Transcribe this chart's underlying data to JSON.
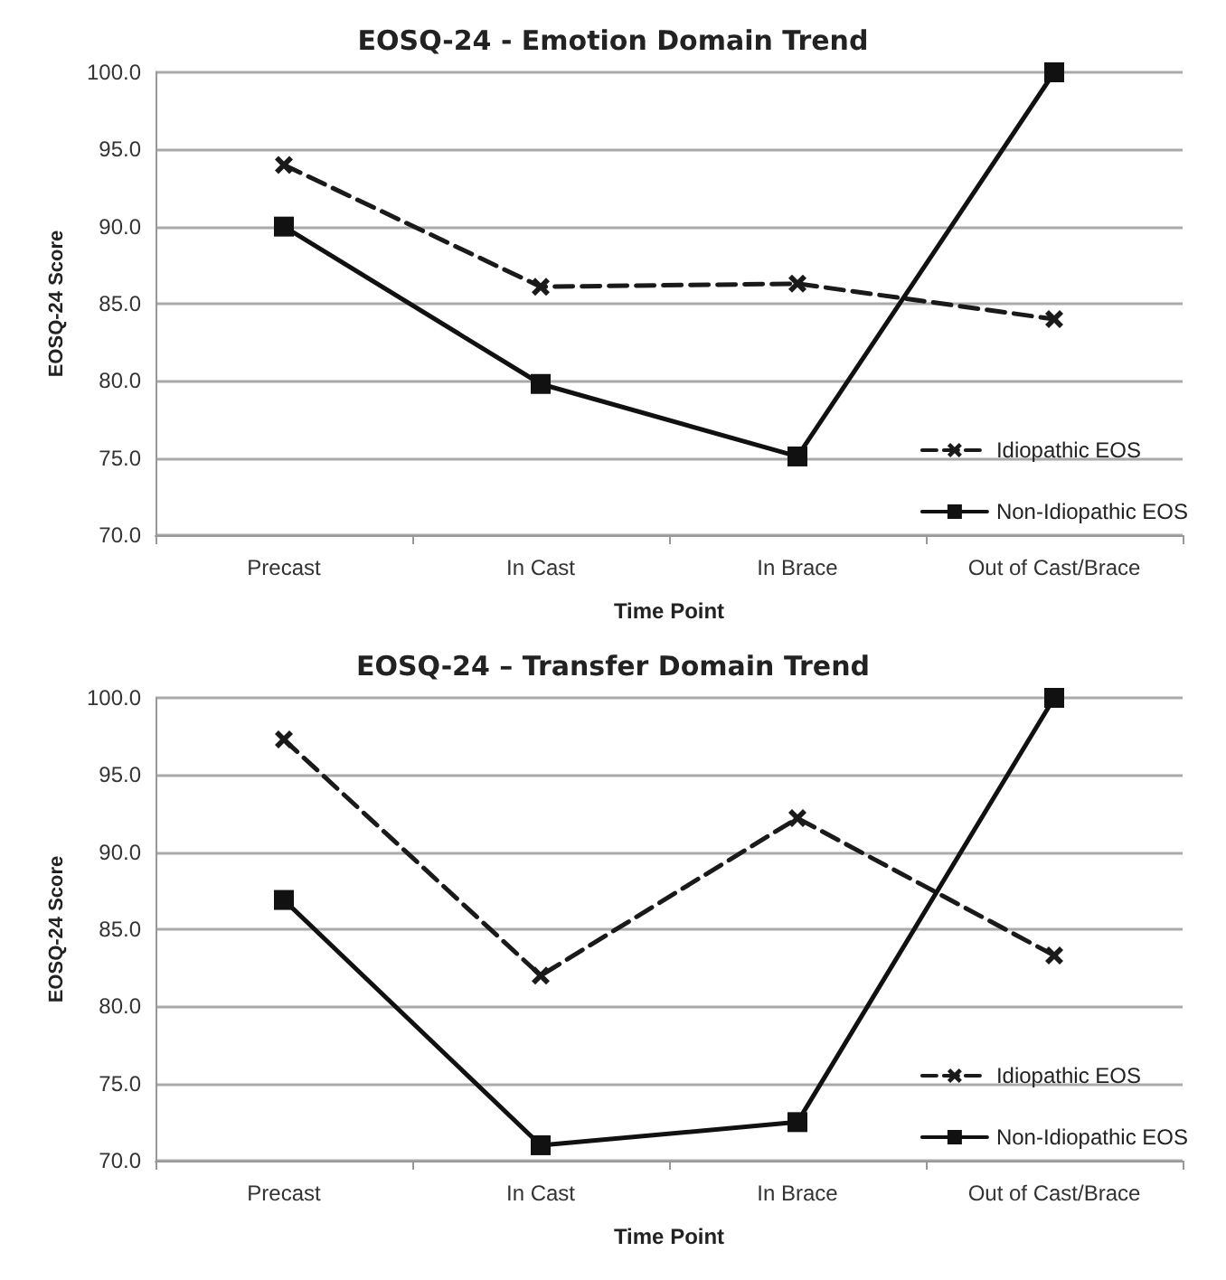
{
  "chart_data": [
    {
      "type": "line",
      "title": "EOSQ-24 - Emotion Domain Trend",
      "xlabel": "Time Point",
      "ylabel": "EOSQ-24 Score",
      "categories": [
        "Precast",
        "In Cast",
        "In Brace",
        "Out of Cast/Brace"
      ],
      "series": [
        {
          "name": "Idiopathic EOS",
          "color": "#1a1a1a",
          "values": [
            94.0,
            86.1,
            86.3,
            84.0
          ],
          "marker": "cross",
          "line_style": "dashed"
        },
        {
          "name": "Non-Idiopathic EOS",
          "color": "#111111",
          "values": [
            90.0,
            79.8,
            75.1,
            100.0
          ],
          "marker": "square",
          "line_style": "solid"
        }
      ],
      "ylim": [
        70,
        100
      ],
      "yticks": [
        {
          "value": 70,
          "label": "70.0"
        },
        {
          "value": 75,
          "label": "75.0"
        },
        {
          "value": 80,
          "label": "80.0"
        },
        {
          "value": 85,
          "label": "85.0"
        },
        {
          "value": 90,
          "label": "90.0"
        },
        {
          "value": 95,
          "label": "95.0"
        },
        {
          "value": 100,
          "label": "100.0"
        }
      ],
      "grid": "y",
      "legend": "bottom right"
    },
    {
      "type": "line",
      "title": "EOSQ-24 – Transfer Domain Trend",
      "xlabel": "Time Point",
      "ylabel": "EOSQ-24 Score",
      "categories": [
        "Precast",
        "In Cast",
        "In Brace",
        "Out of Cast/Brace"
      ],
      "series": [
        {
          "name": "Idiopathic EOS",
          "color": "#1a1a1a",
          "values": [
            97.3,
            82.0,
            92.2,
            83.3
          ],
          "marker": "cross",
          "line_style": "dashed"
        },
        {
          "name": "Non-Idiopathic EOS",
          "color": "#111111",
          "values": [
            86.9,
            71.0,
            72.5,
            100.0
          ],
          "marker": "square",
          "line_style": "solid"
        }
      ],
      "ylim": [
        70,
        100
      ],
      "yticks": [
        {
          "value": 70,
          "label": "70.0"
        },
        {
          "value": 75,
          "label": "75.0"
        },
        {
          "value": 80,
          "label": "80.0"
        },
        {
          "value": 85,
          "label": "85.0"
        },
        {
          "value": 90,
          "label": "90.0"
        },
        {
          "value": 95,
          "label": "95.0"
        },
        {
          "value": 100,
          "label": "100.0"
        }
      ],
      "grid": "y",
      "legend": "bottom right"
    }
  ]
}
